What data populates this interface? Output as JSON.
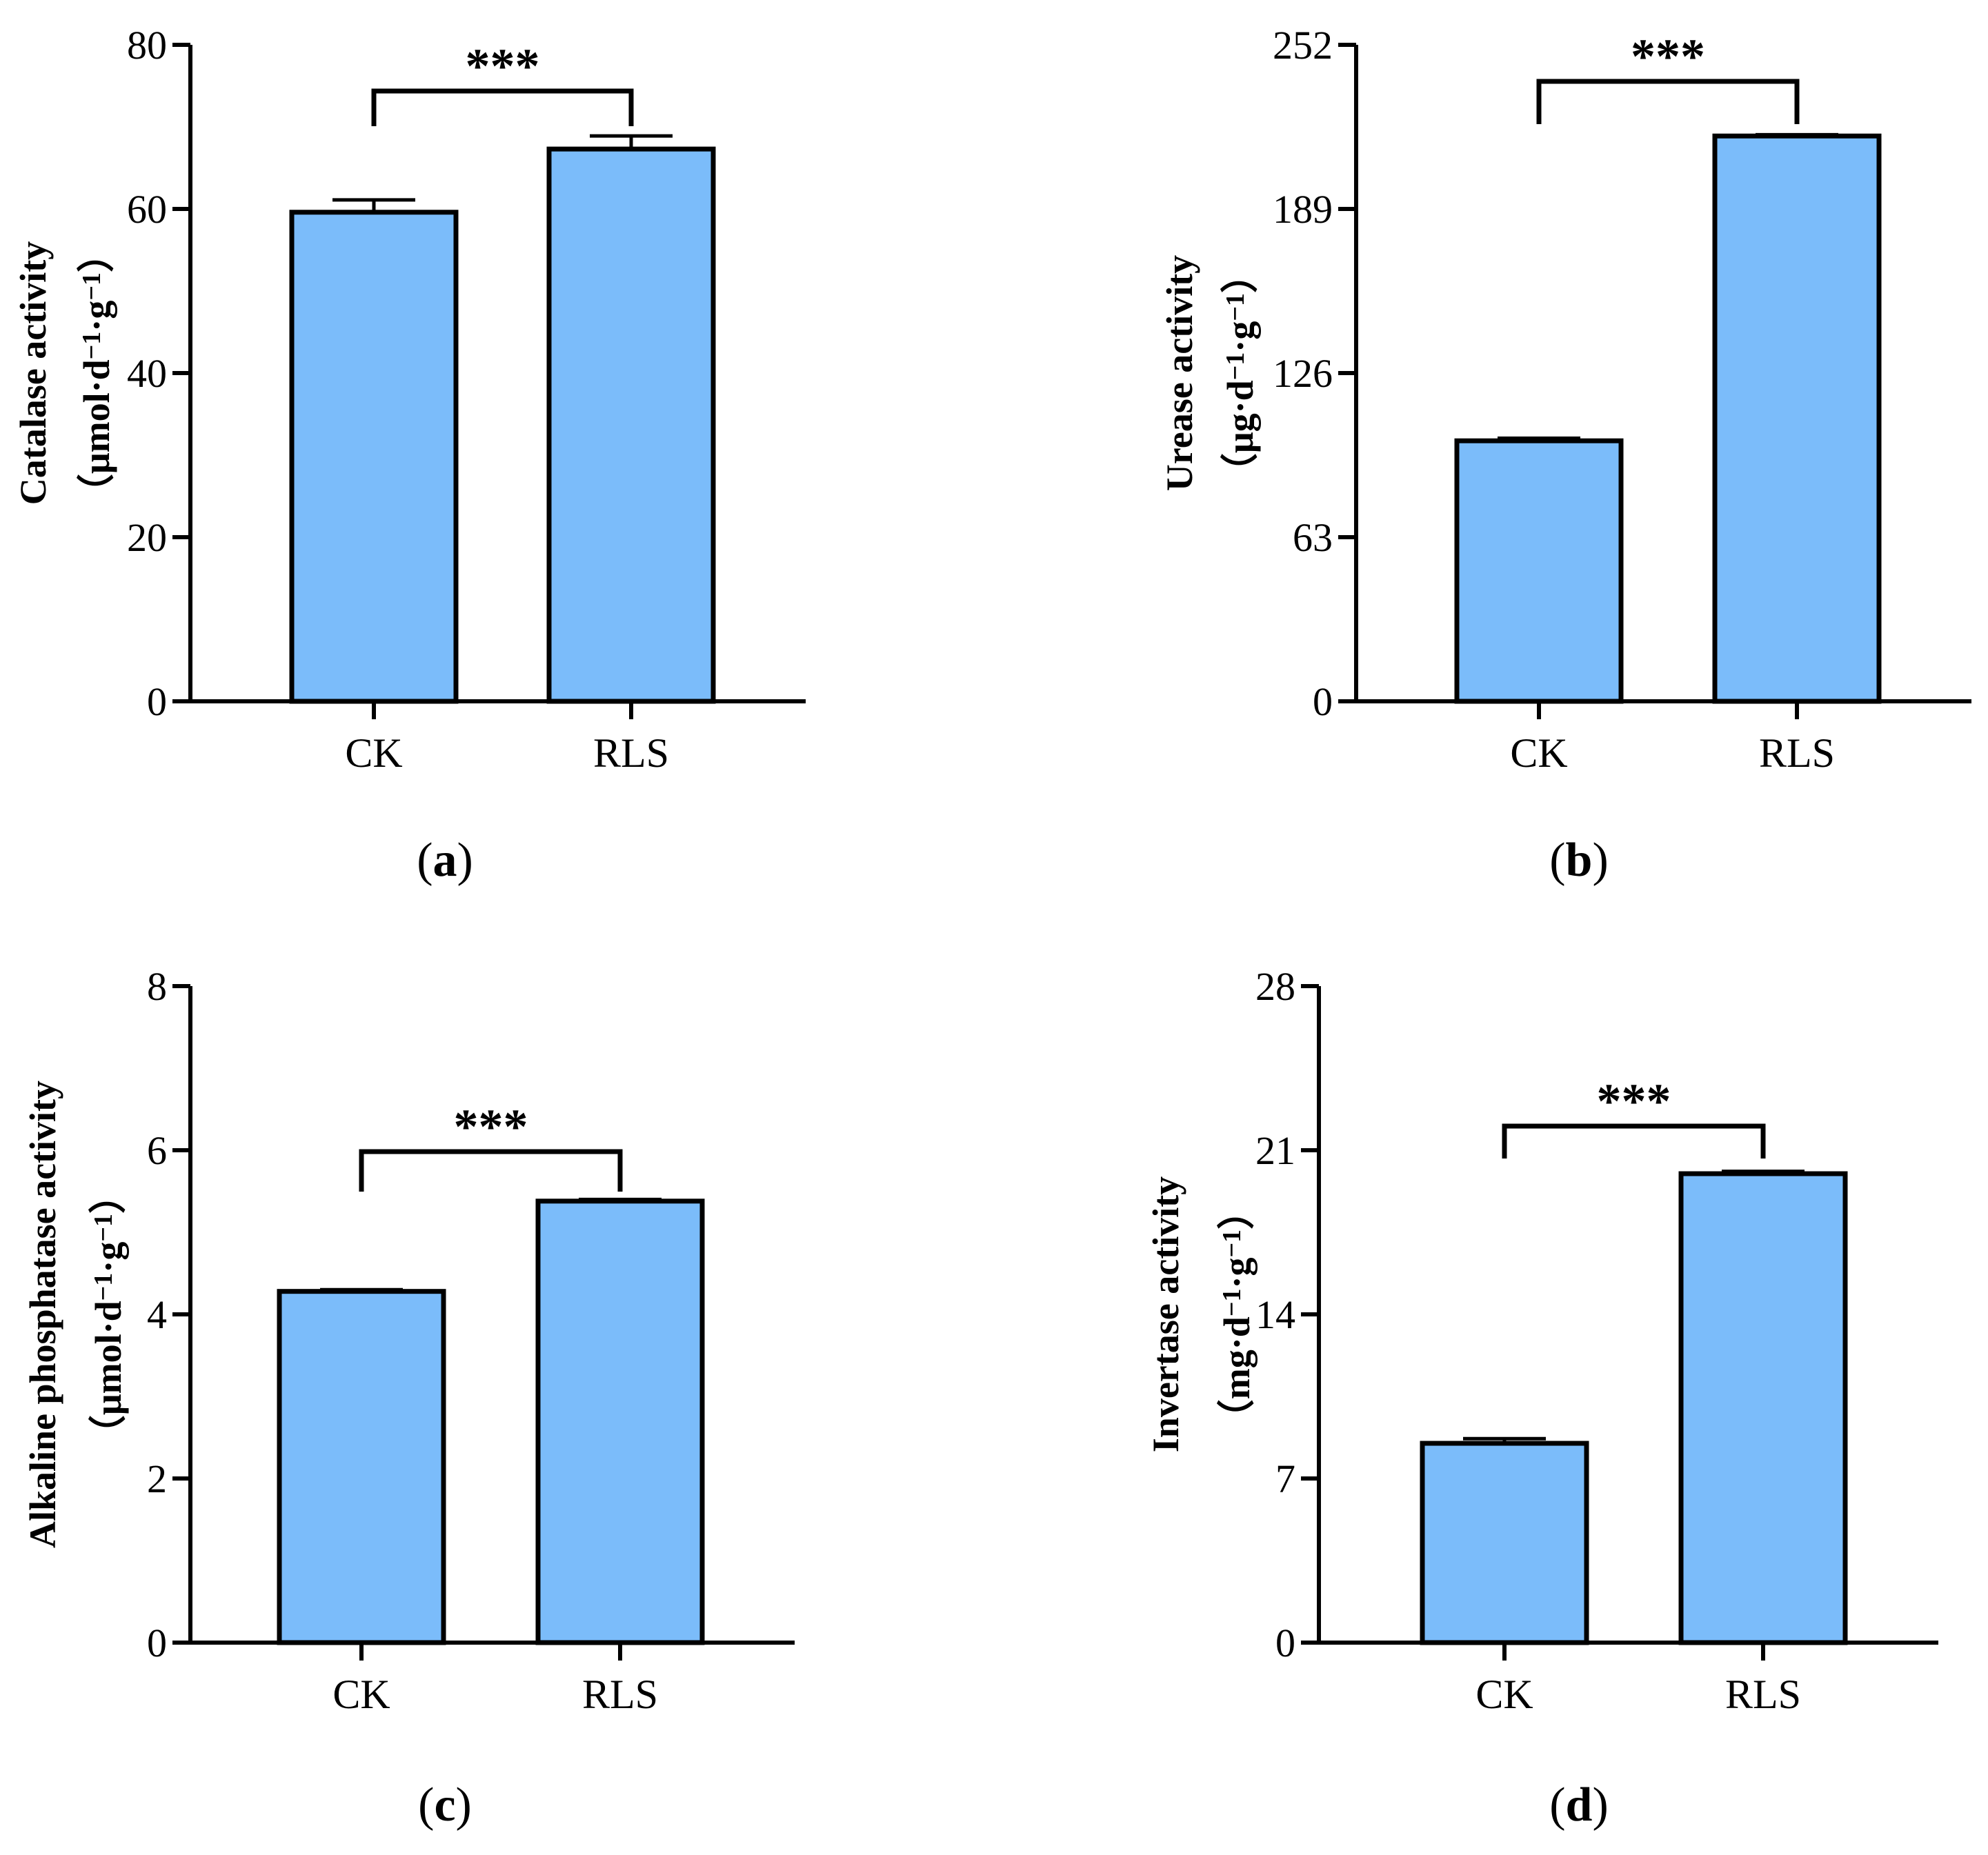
{
  "colors": {
    "bar_fill": "#7bbcfa",
    "bar_stroke": "#000000",
    "axis": "#000000"
  },
  "chart_data": [
    {
      "type": "bar",
      "panel_label": "a",
      "title": "",
      "categories": [
        "CK",
        "RLS"
      ],
      "values": [
        59.6,
        67.3
      ],
      "errors": [
        1.5,
        1.6
      ],
      "ylabel": "Catalase activity",
      "ylabel_unit": [
        "（μmol·d",
        "−1",
        "·g",
        "−1",
        "）"
      ],
      "yticks": [
        "0",
        "20",
        "40",
        "60",
        "80"
      ],
      "ylim": [
        0,
        80
      ],
      "significance": "***"
    },
    {
      "type": "bar",
      "panel_label": "b",
      "title": "",
      "categories": [
        "CK",
        "RLS"
      ],
      "values": [
        100.0,
        217.0
      ],
      "errors": [
        1.0,
        0.5
      ],
      "ylabel": "Urease activity",
      "ylabel_unit": [
        "（μg·d",
        "−1",
        "·g",
        "−1",
        "）"
      ],
      "yticks": [
        "0",
        "63",
        "126",
        "189",
        "252"
      ],
      "ylim": [
        0,
        252
      ],
      "significance": "***"
    },
    {
      "type": "bar",
      "panel_label": "c",
      "title": "",
      "categories": [
        "CK",
        "RLS"
      ],
      "values": [
        4.28,
        5.38
      ],
      "errors": [
        0.02,
        0.02
      ],
      "ylabel": "Alkaline phosphatase activity",
      "ylabel_unit": [
        "（μmol·d",
        "−1",
        "·g",
        "−1",
        "）"
      ],
      "yticks": [
        "0",
        "2",
        "4",
        "6",
        "8"
      ],
      "ylim": [
        0,
        8
      ],
      "significance": "***"
    },
    {
      "type": "bar",
      "panel_label": "d",
      "title": "",
      "categories": [
        "CK",
        "RLS"
      ],
      "values": [
        8.5,
        20.0
      ],
      "errors": [
        0.2,
        0.1
      ],
      "ylabel": "Invertase activity",
      "ylabel_unit": [
        "（mg·d",
        "−1",
        "·g",
        "−1",
        "）"
      ],
      "yticks": [
        "0",
        "7",
        "14",
        "21",
        "28"
      ],
      "ylim": [
        0,
        28
      ],
      "significance": "***"
    }
  ]
}
